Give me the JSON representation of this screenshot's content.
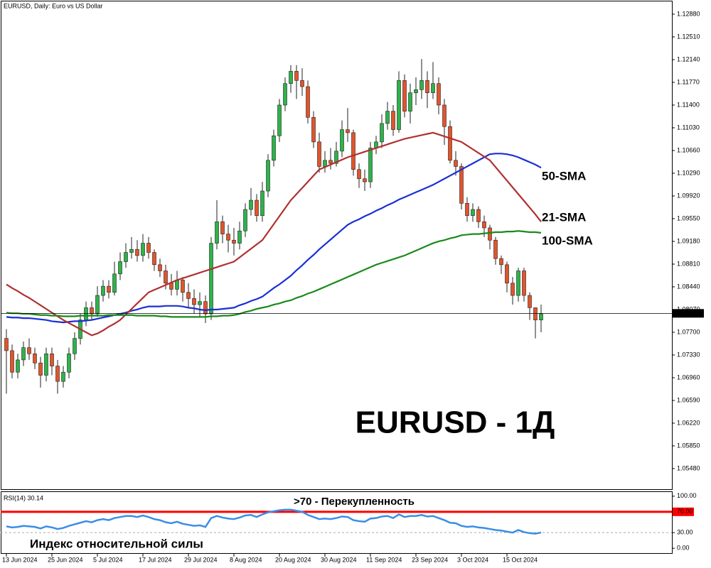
{
  "chart_data": [
    {
      "type": "candlestick",
      "title": "EURUSD, Daily:  Euro vs US Dollar",
      "annotation": "EURUSD - 1Д",
      "up_color": "#2db34a",
      "down_color": "#e2542c",
      "categories": [
        "13 Jun 2024",
        null,
        null,
        null,
        null,
        null,
        null,
        null,
        "25 Jun 2024",
        null,
        null,
        null,
        null,
        null,
        null,
        null,
        "5 Jul 2024",
        null,
        null,
        null,
        null,
        null,
        null,
        null,
        "17 Jul 2024",
        null,
        null,
        null,
        null,
        null,
        null,
        null,
        "29 Jul 2024",
        null,
        null,
        null,
        null,
        null,
        null,
        null,
        "8 Aug 2024",
        null,
        null,
        null,
        null,
        null,
        null,
        null,
        "20 Aug 2024",
        null,
        null,
        null,
        null,
        null,
        null,
        null,
        "30 Aug 2024",
        null,
        null,
        null,
        null,
        null,
        null,
        null,
        "11 Sep 2024",
        null,
        null,
        null,
        null,
        null,
        null,
        null,
        "23 Sep 2024",
        null,
        null,
        null,
        null,
        null,
        null,
        null,
        "3 Oct 2024",
        null,
        null,
        null,
        null,
        null,
        null,
        null,
        "15 Oct 2024",
        null,
        null,
        null,
        null,
        null,
        null
      ],
      "open": [
        1.076,
        1.074,
        1.0705,
        1.0725,
        1.0745,
        1.0735,
        1.072,
        1.07,
        1.0735,
        1.0715,
        1.069,
        1.0705,
        1.0735,
        1.076,
        1.079,
        1.081,
        1.08,
        1.083,
        1.0845,
        1.0835,
        1.0865,
        1.0885,
        1.09,
        1.0905,
        1.0895,
        1.0915,
        1.09,
        1.088,
        1.087,
        1.085,
        1.084,
        1.0855,
        1.0835,
        1.0825,
        1.0815,
        1.082,
        1.08,
        1.0915,
        1.095,
        1.093,
        1.092,
        1.0915,
        1.0935,
        1.097,
        1.0985,
        1.096,
        1.1,
        1.105,
        1.109,
        1.114,
        1.1175,
        1.1195,
        1.118,
        1.117,
        1.112,
        1.108,
        1.104,
        1.105,
        1.1045,
        1.1065,
        1.11,
        1.1095,
        1.1035,
        1.102,
        1.1015,
        1.107,
        1.108,
        1.111,
        1.113,
        1.11,
        1.118,
        1.113,
        1.116,
        1.1165,
        1.118,
        1.116,
        1.1175,
        1.114,
        1.1105,
        1.105,
        1.104,
        1.098,
        1.096,
        1.097,
        1.095,
        1.094,
        1.092,
        1.089,
        1.088,
        1.085,
        1.083,
        1.087,
        1.083,
        1.081,
        1.079
      ],
      "high": [
        1.0775,
        1.075,
        1.0735,
        1.0755,
        1.076,
        1.0745,
        1.073,
        1.0745,
        1.0745,
        1.0725,
        1.0715,
        1.0745,
        1.077,
        1.08,
        1.082,
        1.082,
        1.0845,
        1.0855,
        1.0855,
        1.0885,
        1.09,
        1.0915,
        1.0925,
        1.092,
        1.093,
        1.0925,
        1.0905,
        1.089,
        1.088,
        1.0865,
        1.087,
        1.086,
        1.085,
        1.084,
        1.0835,
        1.083,
        1.0925,
        1.0985,
        1.096,
        1.0945,
        1.094,
        1.095,
        1.098,
        1.1005,
        1.0995,
        1.1015,
        1.106,
        1.11,
        1.115,
        1.1185,
        1.1205,
        1.1205,
        1.12,
        1.118,
        1.113,
        1.1095,
        1.1065,
        1.107,
        1.108,
        1.1115,
        1.1135,
        1.11,
        1.1045,
        1.1035,
        1.108,
        1.109,
        1.1125,
        1.1145,
        1.114,
        1.1195,
        1.119,
        1.1175,
        1.1185,
        1.1215,
        1.1195,
        1.121,
        1.1185,
        1.115,
        1.1115,
        1.1065,
        1.1045,
        1.099,
        1.098,
        1.0975,
        1.096,
        1.0945,
        1.0925,
        1.0895,
        1.0885,
        1.086,
        1.0875,
        1.0875,
        1.0835,
        1.081,
        1.0815
      ],
      "low": [
        1.067,
        1.0695,
        1.0695,
        1.0715,
        1.0725,
        1.071,
        1.068,
        1.069,
        1.07,
        1.067,
        1.068,
        1.0695,
        1.0725,
        1.075,
        1.078,
        1.079,
        1.0795,
        1.082,
        1.0825,
        1.083,
        1.0855,
        1.0875,
        1.089,
        1.0885,
        1.0885,
        1.089,
        1.087,
        1.086,
        1.084,
        1.083,
        1.083,
        1.082,
        1.081,
        1.08,
        1.0795,
        1.0785,
        1.079,
        1.0905,
        1.0915,
        1.09,
        1.0895,
        1.0905,
        1.0925,
        1.096,
        1.095,
        1.095,
        1.099,
        1.104,
        1.108,
        1.113,
        1.116,
        1.115,
        1.1155,
        1.111,
        1.107,
        1.103,
        1.103,
        1.1035,
        1.104,
        1.1055,
        1.108,
        1.1025,
        1.1005,
        1.1,
        1.1005,
        1.106,
        1.107,
        1.11,
        1.109,
        1.1095,
        1.112,
        1.111,
        1.114,
        1.115,
        1.1135,
        1.115,
        1.1125,
        1.1075,
        1.1045,
        1.1025,
        1.097,
        1.095,
        1.095,
        1.094,
        1.0925,
        1.0905,
        1.088,
        1.0865,
        1.0835,
        1.0815,
        1.082,
        1.082,
        1.079,
        1.076,
        1.077
      ],
      "close": [
        1.074,
        1.0705,
        1.0725,
        1.0745,
        1.0735,
        1.072,
        1.07,
        1.0735,
        1.0715,
        1.069,
        1.0705,
        1.0735,
        1.076,
        1.079,
        1.081,
        1.08,
        1.083,
        1.0845,
        1.0835,
        1.0865,
        1.0885,
        1.09,
        1.0905,
        1.0895,
        1.0915,
        1.09,
        1.088,
        1.087,
        1.085,
        1.084,
        1.0855,
        1.0835,
        1.0825,
        1.0815,
        1.082,
        1.08,
        1.0915,
        1.095,
        1.093,
        1.092,
        1.0915,
        1.0935,
        1.097,
        1.0985,
        1.096,
        1.1,
        1.105,
        1.109,
        1.114,
        1.1175,
        1.1195,
        1.118,
        1.117,
        1.112,
        1.108,
        1.104,
        1.105,
        1.1045,
        1.1065,
        1.11,
        1.1095,
        1.1035,
        1.102,
        1.1015,
        1.107,
        1.108,
        1.111,
        1.113,
        1.11,
        1.118,
        1.113,
        1.116,
        1.1165,
        1.118,
        1.116,
        1.1175,
        1.114,
        1.1105,
        1.105,
        1.104,
        1.098,
        1.096,
        1.097,
        1.095,
        1.094,
        1.092,
        1.089,
        1.088,
        1.085,
        1.083,
        1.087,
        1.083,
        1.081,
        1.079,
        1.08
      ],
      "series": [
        {
          "name": "50-SMA",
          "color": "#1a2fd6",
          "values": [
            1.0795,
            1.0794,
            1.0794,
            1.0793,
            1.0793,
            1.0792,
            1.0791,
            1.079,
            1.0788,
            1.0787,
            1.0786,
            1.0787,
            1.0788,
            1.0788,
            1.0789,
            1.079,
            1.0792,
            1.0794,
            1.0796,
            1.0798,
            1.08,
            1.0802,
            1.0805,
            1.0807,
            1.081,
            1.0812,
            1.0812,
            1.0812,
            1.0813,
            1.0813,
            1.0813,
            1.0812,
            1.081,
            1.0809,
            1.0807,
            1.0806,
            1.0807,
            1.0807,
            1.0808,
            1.0809,
            1.081,
            1.0814,
            1.0817,
            1.0821,
            1.0824,
            1.0828,
            1.0835,
            1.0842,
            1.0848,
            1.0855,
            1.0862,
            1.0871,
            1.0879,
            1.0888,
            1.0896,
            1.0905,
            1.0913,
            1.0921,
            1.0929,
            1.0937,
            1.0945,
            1.095,
            1.0954,
            1.0959,
            1.0963,
            1.0968,
            1.0972,
            1.0977,
            1.0981,
            1.0986,
            1.099,
            1.0994,
            1.0998,
            1.1002,
            1.1006,
            1.101,
            1.1015,
            1.102,
            1.1025,
            1.103,
            1.1035,
            1.104,
            1.1045,
            1.105,
            1.1055,
            1.106,
            1.1061,
            1.1061,
            1.106,
            1.1058,
            1.1055,
            1.1051,
            1.1047,
            1.1043,
            1.1038
          ]
        },
        {
          "name": "21-SMA",
          "color": "#b03030",
          "values": [
            1.0848,
            1.0842,
            1.0837,
            1.0831,
            1.0826,
            1.082,
            1.0814,
            1.0808,
            1.0802,
            1.0796,
            1.079,
            1.0785,
            1.078,
            1.0775,
            1.077,
            1.0765,
            1.0768,
            1.0773,
            1.0779,
            1.0784,
            1.079,
            1.0799,
            1.0808,
            1.0817,
            1.0826,
            1.0835,
            1.0839,
            1.0843,
            1.0847,
            1.0851,
            1.0855,
            1.0858,
            1.0861,
            1.0864,
            1.0867,
            1.087,
            1.0873,
            1.0876,
            1.0879,
            1.0882,
            1.0885,
            1.0892,
            1.0899,
            1.0906,
            1.0913,
            1.092,
            1.0933,
            1.0946,
            1.0959,
            1.0972,
            1.0985,
            1.0995,
            1.1005,
            1.1015,
            1.1025,
            1.1035,
            1.1039,
            1.1043,
            1.1047,
            1.1051,
            1.1055,
            1.1058,
            1.1061,
            1.1064,
            1.1067,
            1.107,
            1.1073,
            1.1076,
            1.1079,
            1.1082,
            1.1085,
            1.1087,
            1.1089,
            1.1091,
            1.1093,
            1.1095,
            1.1092,
            1.1089,
            1.1086,
            1.1083,
            1.108,
            1.1074,
            1.1068,
            1.1062,
            1.1056,
            1.105,
            1.1039,
            1.1028,
            1.1017,
            1.1006,
            1.0995,
            1.0984,
            1.0973,
            1.0962,
            1.095
          ]
        },
        {
          "name": "100-SMA",
          "color": "#1a8a1a",
          "values": [
            1.0802,
            1.0801,
            1.0801,
            1.08,
            1.08,
            1.0799,
            1.0798,
            1.0798,
            1.0797,
            1.0797,
            1.0796,
            1.0796,
            1.0796,
            1.0797,
            1.0797,
            1.0797,
            1.0797,
            1.0797,
            1.0798,
            1.0798,
            1.0798,
            1.0798,
            1.0798,
            1.0797,
            1.0797,
            1.0797,
            1.0797,
            1.0796,
            1.0796,
            1.0795,
            1.0795,
            1.0795,
            1.0795,
            1.0795,
            1.0795,
            1.0795,
            1.0796,
            1.0796,
            1.0797,
            1.0797,
            1.0798,
            1.08,
            1.0803,
            1.0805,
            1.0808,
            1.081,
            1.0812,
            1.0815,
            1.0817,
            1.082,
            1.0822,
            1.0826,
            1.0829,
            1.0833,
            1.0836,
            1.084,
            1.0844,
            1.0848,
            1.0852,
            1.0856,
            1.086,
            1.0864,
            1.0868,
            1.0872,
            1.0876,
            1.088,
            1.0883,
            1.0886,
            1.0889,
            1.0892,
            1.0895,
            1.0899,
            1.0903,
            1.0907,
            1.0911,
            1.0915,
            1.0918,
            1.092,
            1.0923,
            1.0925,
            1.0928,
            1.0929,
            1.093,
            1.093,
            1.0931,
            1.0932,
            1.0933,
            1.0933,
            1.0934,
            1.0934,
            1.0935,
            1.0934,
            1.0933,
            1.0933,
            1.0932
          ]
        }
      ],
      "price_line": {
        "value": 1.08008,
        "label": "1.08008"
      },
      "ylim": [
        1.05133,
        1.13053
      ],
      "yticks": [
        {
          "value": 1.1288,
          "label": "1.12880"
        },
        {
          "value": 1.1251,
          "label": "1.12510"
        },
        {
          "value": 1.1214,
          "label": "1.12140"
        },
        {
          "value": 1.1177,
          "label": "1.11770"
        },
        {
          "value": 1.114,
          "label": "1.11400"
        },
        {
          "value": 1.1103,
          "label": "1.11030"
        },
        {
          "value": 1.1066,
          "label": "1.10660"
        },
        {
          "value": 1.1029,
          "label": "1.10290"
        },
        {
          "value": 1.0992,
          "label": "1.09920"
        },
        {
          "value": 1.0955,
          "label": "1.09550"
        },
        {
          "value": 1.0918,
          "label": "1.09180"
        },
        {
          "value": 1.0881,
          "label": "1.08810"
        },
        {
          "value": 1.0844,
          "label": "1.08440"
        },
        {
          "value": 1.0807,
          "label": "1.08070"
        },
        {
          "value": 1.077,
          "label": "1.07700"
        },
        {
          "value": 1.0733,
          "label": "1.07330"
        },
        {
          "value": 1.0696,
          "label": "1.06960"
        },
        {
          "value": 1.0659,
          "label": "1.06590"
        },
        {
          "value": 1.0622,
          "label": "1.06220"
        },
        {
          "value": 1.0585,
          "label": "1.05850"
        },
        {
          "value": 1.0548,
          "label": "1.05480"
        }
      ]
    },
    {
      "type": "line",
      "title": "RSI(14) 30.14",
      "annotations": [
        ">70 - Перекупленность",
        "Индекс относительной силы"
      ],
      "series": [
        {
          "color": "#3a8ee6",
          "values": [
            42,
            40,
            41,
            43,
            42,
            41,
            38,
            42,
            40,
            37,
            39,
            43,
            46,
            49,
            52,
            50,
            54,
            56,
            54,
            58,
            60,
            62,
            62,
            60,
            63,
            60,
            56,
            54,
            50,
            48,
            51,
            47,
            45,
            43,
            44,
            41,
            58,
            62,
            59,
            57,
            56,
            59,
            63,
            64,
            60,
            65,
            69,
            71,
            73,
            74,
            74,
            72,
            70,
            64,
            60,
            56,
            57,
            56,
            58,
            61,
            60,
            54,
            52,
            51,
            57,
            58,
            61,
            62,
            58,
            65,
            60,
            62,
            62,
            64,
            61,
            62,
            58,
            54,
            49,
            48,
            43,
            41,
            42,
            40,
            39,
            37,
            35,
            34,
            32,
            30,
            35,
            31,
            29,
            28,
            30.14
          ]
        }
      ],
      "levels": [
        {
          "value": 70,
          "color": "#ff0000",
          "style": "solid"
        },
        {
          "value": 30,
          "color": "#aaaaaa",
          "style": "dashed"
        }
      ],
      "ylim": [
        -9.3,
        108
      ],
      "yticks": [
        {
          "value": 100,
          "label": "100.00"
        },
        {
          "value": 70,
          "label": "70.00"
        },
        {
          "value": 30,
          "label": "30.00"
        },
        {
          "value": 0,
          "label": "0.00"
        }
      ]
    }
  ]
}
